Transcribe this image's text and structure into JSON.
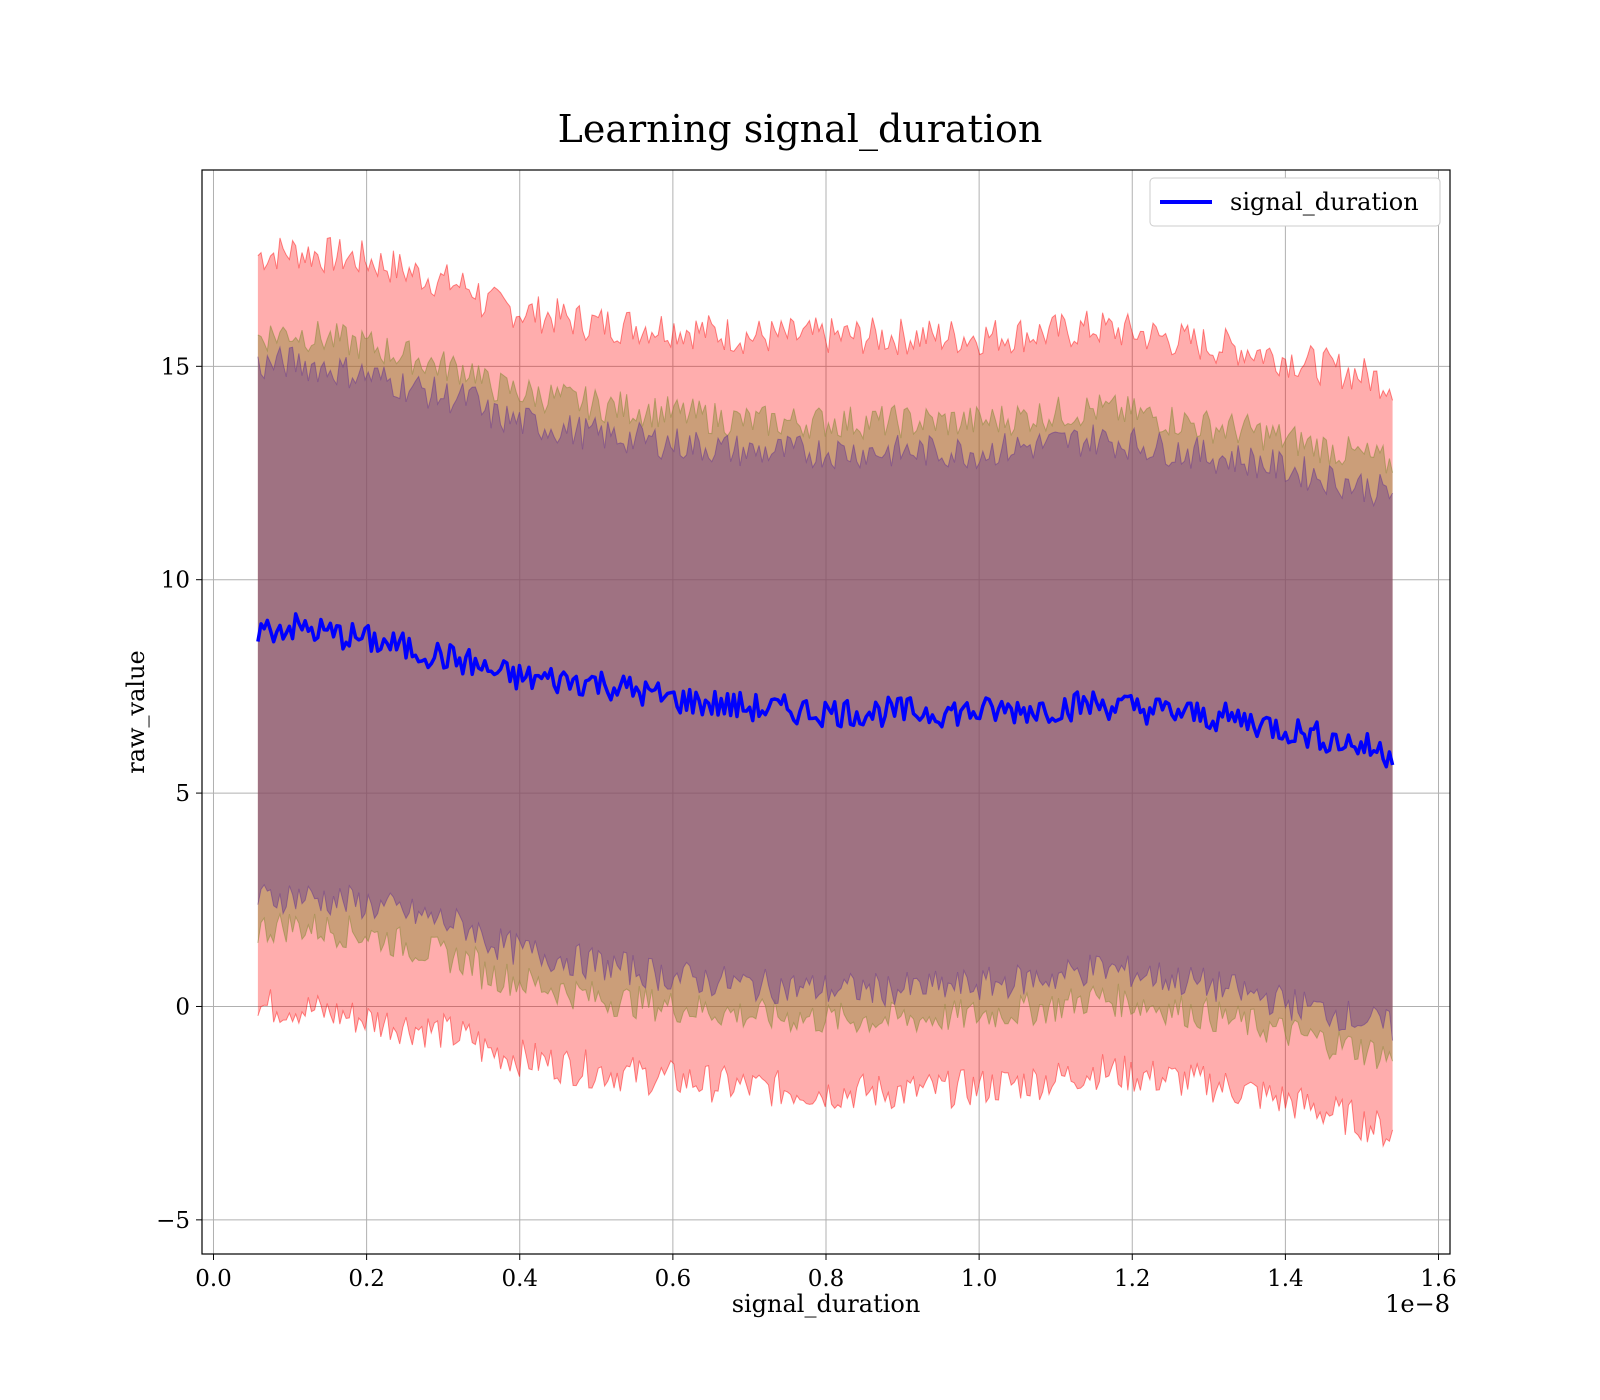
{
  "chart_data": {
    "type": "line",
    "title": "Learning signal_duration",
    "xlabel": "signal_duration",
    "ylabel": "raw_value",
    "x_offset_text": "1e−8",
    "xlim": [
      -0.015,
      1.615
    ],
    "ylim": [
      -5.8,
      19.6
    ],
    "x_ticks": [
      0.0,
      0.2,
      0.4,
      0.6,
      0.8,
      1.0,
      1.2,
      1.4,
      1.6
    ],
    "x_tick_labels": [
      "0.0",
      "0.2",
      "0.4",
      "0.6",
      "0.8",
      "1.0",
      "1.2",
      "1.4",
      "1.6"
    ],
    "y_ticks": [
      -5,
      0,
      5,
      10,
      15
    ],
    "y_tick_labels": [
      "−5",
      "0",
      "5",
      "10",
      "15"
    ],
    "grid": true,
    "legend": {
      "position": "top-right",
      "entries": [
        "signal_duration"
      ]
    },
    "colors": {
      "mean_line": "#0000ff",
      "band_outer": "#ff0000",
      "band_middle": "#8b8b3a",
      "band_inner": "#6a3b8f",
      "grid": "#b0b0b0"
    },
    "x": [
      0.058,
      0.1,
      0.2,
      0.3,
      0.345,
      0.35,
      0.4,
      0.5,
      0.6,
      0.7,
      0.8,
      0.9,
      1.0,
      1.1,
      1.15,
      1.2,
      1.3,
      1.35,
      1.4,
      1.5,
      1.54
    ],
    "series": [
      {
        "name": "signal_duration",
        "role": "mean",
        "values": [
          8.8,
          8.9,
          8.6,
          8.2,
          8.0,
          7.9,
          7.7,
          7.6,
          7.2,
          7.0,
          6.9,
          6.9,
          6.9,
          7.0,
          7.1,
          7.0,
          6.8,
          6.7,
          6.5,
          6.1,
          5.9
        ]
      },
      {
        "role": "band_outer",
        "lower": [
          0.0,
          0.0,
          -0.3,
          -0.6,
          -0.8,
          -1.0,
          -1.2,
          -1.5,
          -1.7,
          -1.9,
          -2.0,
          -2.0,
          -1.9,
          -1.7,
          -1.5,
          -1.6,
          -1.8,
          -2.0,
          -2.2,
          -2.7,
          -3.0
        ],
        "upper": [
          17.6,
          17.7,
          17.5,
          17.0,
          16.8,
          16.5,
          16.3,
          16.0,
          15.9,
          15.7,
          15.7,
          15.7,
          15.7,
          15.8,
          15.9,
          15.8,
          15.5,
          15.4,
          15.2,
          14.8,
          14.6
        ]
      },
      {
        "role": "band_middle",
        "lower": [
          1.8,
          1.9,
          1.7,
          1.2,
          1.0,
          0.8,
          0.6,
          0.2,
          0.0,
          -0.2,
          -0.3,
          -0.3,
          -0.2,
          0.0,
          0.2,
          0.1,
          -0.2,
          -0.4,
          -0.6,
          -1.0,
          -1.2
        ],
        "upper": [
          15.7,
          15.8,
          15.5,
          15.0,
          14.9,
          14.6,
          14.4,
          14.1,
          13.9,
          13.7,
          13.7,
          13.7,
          13.7,
          13.9,
          14.0,
          13.9,
          13.6,
          13.5,
          13.3,
          12.9,
          12.7
        ]
      },
      {
        "role": "band_inner",
        "lower": [
          2.5,
          2.6,
          2.4,
          2.0,
          1.8,
          1.6,
          1.3,
          1.0,
          0.7,
          0.5,
          0.4,
          0.4,
          0.5,
          0.7,
          0.9,
          0.8,
          0.5,
          0.3,
          0.1,
          -0.3,
          -0.5
        ],
        "upper": [
          15.0,
          15.1,
          14.8,
          14.3,
          14.2,
          13.9,
          13.7,
          13.4,
          13.2,
          13.0,
          13.0,
          13.0,
          13.0,
          13.2,
          13.3,
          13.2,
          12.9,
          12.8,
          12.6,
          12.2,
          12.0
        ]
      }
    ]
  }
}
